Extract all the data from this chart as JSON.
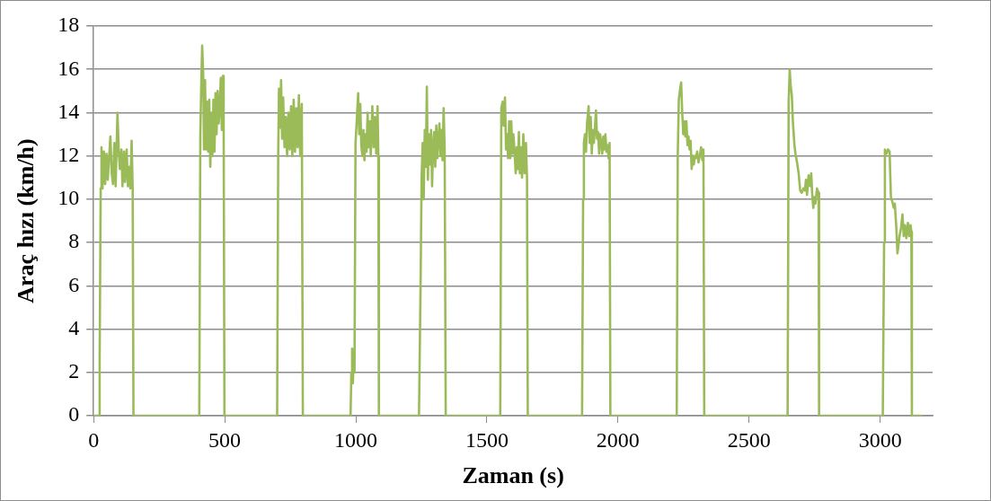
{
  "chart_data": {
    "type": "line",
    "xlabel": "Zaman (s)",
    "ylabel": "Araç hızı (km/h)",
    "xlim": [
      0,
      3200
    ],
    "xticks": [
      0,
      500,
      1000,
      1500,
      2000,
      2500,
      3000
    ],
    "ylim": [
      0,
      18
    ],
    "yticks": [
      0,
      2,
      4,
      6,
      8,
      10,
      12,
      14,
      16,
      18
    ],
    "grid": "y",
    "legend": false,
    "marker": "none",
    "line_style": "solid",
    "series": [
      {
        "color": "#9bbb59",
        "x": [
          0,
          20,
          23,
          27,
          30,
          34,
          39,
          44,
          49,
          54,
          59,
          64,
          69,
          74,
          79,
          84,
          91,
          96,
          100,
          106,
          110,
          116,
          120,
          126,
          131,
          136,
          140,
          145,
          149,
          152,
          403,
          407,
          411,
          414,
          418,
          421,
          425,
          429,
          433,
          437,
          441,
          445,
          449,
          453,
          457,
          461,
          465,
          469,
          473,
          477,
          481,
          485,
          489,
          493,
          496,
          499,
          700,
          704,
          707,
          711,
          715,
          719,
          723,
          728,
          733,
          738,
          743,
          748,
          753,
          758,
          763,
          768,
          773,
          778,
          783,
          788,
          794,
          798,
          980,
          983,
          986,
          989,
          992,
          995,
          999,
          1003,
          1009,
          1013,
          1017,
          1021,
          1025,
          1029,
          1033,
          1037,
          1041,
          1045,
          1049,
          1053,
          1057,
          1063,
          1068,
          1073,
          1078,
          1083,
          1086,
          1088,
          1241,
          1247,
          1251,
          1255,
          1259,
          1263,
          1267,
          1271,
          1275,
          1279,
          1283,
          1287,
          1291,
          1295,
          1299,
          1303,
          1307,
          1311,
          1315,
          1319,
          1323,
          1327,
          1331,
          1335,
          1339,
          1343,
          1551,
          1555,
          1560,
          1564,
          1569,
          1573,
          1577,
          1581,
          1585,
          1589,
          1593,
          1597,
          1601,
          1605,
          1610,
          1614,
          1618,
          1622,
          1626,
          1630,
          1634,
          1639,
          1644,
          1649,
          1653,
          1656,
          1863,
          1867,
          1870,
          1874,
          1878,
          1882,
          1888,
          1892,
          1896,
          1900,
          1904,
          1908,
          1912,
          1916,
          1920,
          1924,
          1928,
          1932,
          1936,
          1940,
          1944,
          1948,
          1952,
          1956,
          1960,
          1964,
          1968,
          1971,
          2224,
          2228,
          2232,
          2237,
          2241,
          2245,
          2249,
          2253,
          2257,
          2261,
          2265,
          2269,
          2273,
          2277,
          2281,
          2285,
          2289,
          2293,
          2297,
          2302,
          2307,
          2312,
          2317,
          2322,
          2326,
          2329,
          2647,
          2651,
          2655,
          2659,
          2663,
          2667,
          2673,
          2677,
          2683,
          2689,
          2695,
          2701,
          2707,
          2713,
          2717,
          2721,
          2727,
          2733,
          2737,
          2741,
          2745,
          2749,
          2753,
          2759,
          2765,
          2767,
          3010,
          3015,
          3018,
          3024,
          3030,
          3036,
          3041,
          3046,
          3052,
          3056,
          3062,
          3066,
          3070,
          3074,
          3080,
          3085,
          3090,
          3095,
          3100,
          3106,
          3111,
          3116,
          3119,
          3121,
          3155
        ],
        "values": [
          0,
          0,
          2.6,
          10.5,
          12.4,
          10.5,
          12.2,
          10.7,
          12.1,
          10.9,
          11.9,
          12.9,
          11.2,
          10.7,
          12.6,
          10.6,
          14.0,
          12.2,
          11.4,
          12.3,
          10.6,
          12.2,
          10.8,
          12.3,
          10.6,
          11.5,
          10.5,
          12.7,
          10.5,
          0,
          0,
          13,
          15.5,
          17.1,
          15.8,
          12.3,
          15.5,
          12.3,
          14.5,
          12.2,
          14.6,
          11.5,
          14.0,
          12.0,
          14.6,
          12.2,
          14.9,
          13,
          15.0,
          13.5,
          14.2,
          15.6,
          13.2,
          15.7,
          13.5,
          0,
          0,
          12,
          15.1,
          13.3,
          15.5,
          12.8,
          14.7,
          12.4,
          13.8,
          12.0,
          14.0,
          12.3,
          14.3,
          12.0,
          14.6,
          12.2,
          14.2,
          12.4,
          14.8,
          12.0,
          14.4,
          0,
          0,
          2,
          3.1,
          1.5,
          2.9,
          2,
          12.6,
          13.5,
          14.9,
          13.0,
          14.4,
          12.5,
          12.0,
          13.2,
          11.8,
          13.0,
          12.2,
          14.0,
          12.4,
          13.6,
          12.0,
          14.3,
          12.4,
          13.8,
          12.1,
          14.3,
          12,
          0,
          0,
          6,
          11,
          12.6,
          10.0,
          13.2,
          11.5,
          15.2,
          10.9,
          13.0,
          11.6,
          13.2,
          10.6,
          12.5,
          13.1,
          11.5,
          13.4,
          11.9,
          12.8,
          13.5,
          12.0,
          13.2,
          11.8,
          14.2,
          12.3,
          0,
          0,
          14.2,
          14.5,
          13.4,
          14.7,
          12.3,
          13.0,
          11.9,
          13.6,
          11.9,
          13.6,
          12.1,
          13.0,
          12.3,
          11.2,
          12.4,
          11.4,
          13.1,
          11.2,
          12.4,
          11.0,
          13.0,
          11.2,
          12.6,
          11.0,
          0,
          0,
          10,
          12.6,
          13.0,
          12.2,
          13.5,
          14.3,
          12.6,
          13.8,
          12.1,
          13.2,
          12.6,
          13.3,
          14.1,
          12.8,
          13.1,
          12.1,
          13.0,
          12.6,
          12.1,
          12.9,
          12.3,
          13.0,
          12.2,
          12.5,
          11.9,
          12.6,
          0,
          0,
          12,
          14.6,
          15.1,
          15.4,
          14.0,
          13.0,
          13.6,
          12.9,
          13.6,
          12.5,
          12.9,
          12.3,
          12.7,
          11.4,
          12.0,
          11.6,
          12.0,
          11.9,
          12.2,
          11.7,
          12.0,
          12.4,
          11.8,
          12.3,
          0,
          0,
          14.5,
          16.0,
          15.2,
          14.8,
          13.6,
          12.5,
          12.1,
          11.7,
          11.2,
          10.4,
          10.3,
          10.5,
          10.4,
          10.9,
          10.2,
          11.1,
          10.6,
          11.2,
          10.2,
          9.6,
          10.1,
          9.8,
          10.5,
          10.3,
          0,
          0,
          8,
          12.3,
          12.1,
          12.3,
          12.2,
          10.1,
          9.9,
          9.6,
          9.8,
          8.6,
          7.5,
          7.9,
          8.3,
          8.7,
          9.3,
          8.3,
          8.8,
          8.2,
          8.9,
          8.3,
          8.8,
          8.5,
          0,
          0
        ]
      }
    ]
  }
}
